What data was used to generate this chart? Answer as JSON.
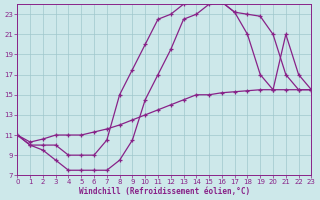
{
  "xlabel": "Windchill (Refroidissement éolien,°C)",
  "bg_color": "#cde8ea",
  "grid_color": "#a0c8cc",
  "line_color": "#882288",
  "xlim": [
    0,
    23
  ],
  "ylim": [
    7,
    24
  ],
  "xticks": [
    0,
    1,
    2,
    3,
    4,
    5,
    6,
    7,
    8,
    9,
    10,
    11,
    12,
    13,
    14,
    15,
    16,
    17,
    18,
    19,
    20,
    21,
    22,
    23
  ],
  "yticks": [
    7,
    9,
    11,
    13,
    15,
    17,
    19,
    21,
    23
  ],
  "curve_top_x": [
    0,
    1,
    2,
    3,
    4,
    5,
    6,
    7,
    8,
    9,
    10,
    11,
    12,
    13,
    14,
    15,
    16,
    17,
    18,
    19,
    20,
    21,
    22,
    23
  ],
  "curve_top_y": [
    11,
    10,
    10,
    10,
    9,
    9,
    9,
    10.5,
    15,
    17.5,
    20,
    22.5,
    23,
    24,
    24.5,
    24.5,
    24.2,
    23.2,
    23,
    22.8,
    21,
    17,
    15.5,
    15.5
  ],
  "curve_mid_x": [
    0,
    1,
    2,
    3,
    4,
    5,
    6,
    7,
    8,
    9,
    10,
    11,
    12,
    13,
    14,
    15,
    16,
    17,
    18,
    19,
    20,
    21,
    22,
    23
  ],
  "curve_mid_y": [
    11,
    10.3,
    10.6,
    11,
    11,
    11,
    11.3,
    11.6,
    12,
    12.5,
    13,
    13.5,
    14,
    14.5,
    15,
    15,
    15.2,
    15.3,
    15.4,
    15.5,
    15.5,
    15.5,
    15.5,
    15.5
  ],
  "curve_bot_x": [
    0,
    1,
    2,
    3,
    4,
    5,
    6,
    7,
    8,
    9,
    10,
    11,
    12,
    13,
    14,
    15,
    16,
    17,
    18,
    19,
    20,
    21,
    22,
    23
  ],
  "curve_bot_y": [
    11,
    10,
    9.5,
    8.5,
    7.5,
    7.5,
    7.5,
    7.5,
    8.5,
    10.5,
    14.5,
    17,
    19.5,
    22.5,
    23,
    24,
    24.2,
    23.2,
    21,
    17,
    15.5,
    21,
    17,
    15.5
  ]
}
